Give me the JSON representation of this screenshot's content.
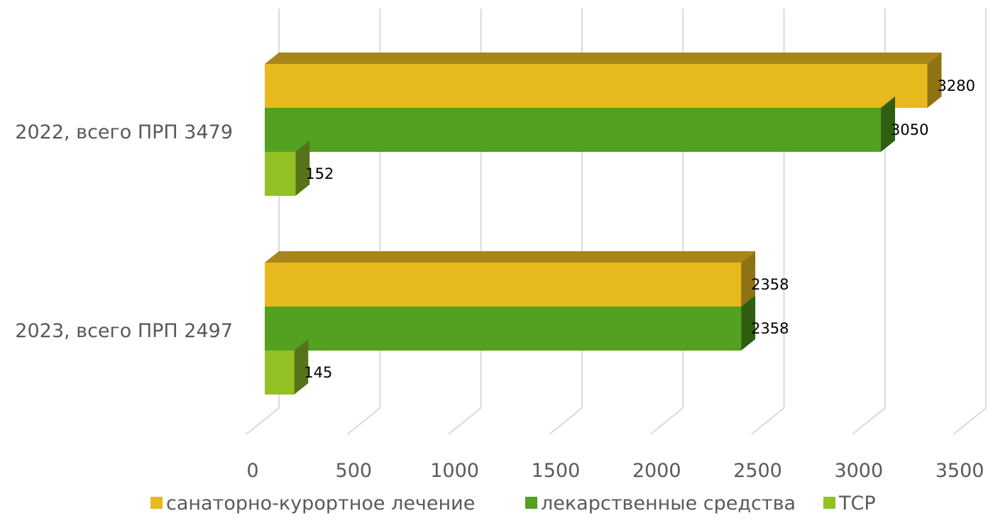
{
  "chart_data": {
    "type": "bar",
    "orientation": "horizontal",
    "style": "3d",
    "categories": [
      "2022, всего ПРП 3479",
      "2023, всего ПРП 2497"
    ],
    "series": [
      {
        "name": "санаторно-курортное лечение",
        "values": [
          3280,
          2358
        ],
        "color": "#E6B91E",
        "dark": "#A8861A",
        "side": "#8F7312"
      },
      {
        "name": "лекарственные средства",
        "values": [
          3050,
          2358
        ],
        "color": "#54A021",
        "dark": "#3C7A16",
        "side": "#2F5E10"
      },
      {
        "name": "ТСР",
        "values": [
          152,
          145
        ],
        "color": "#93C123",
        "dark": "#6C8E1A",
        "side": "#57731A"
      }
    ],
    "xticks": [
      "0",
      "500",
      "1000",
      "1500",
      "2000",
      "2500",
      "3000",
      "3500"
    ],
    "xlim": [
      0,
      3500
    ],
    "grid": true,
    "legend": "bottom",
    "data_labels": true,
    "gridline_color": "#D9D9D9"
  }
}
